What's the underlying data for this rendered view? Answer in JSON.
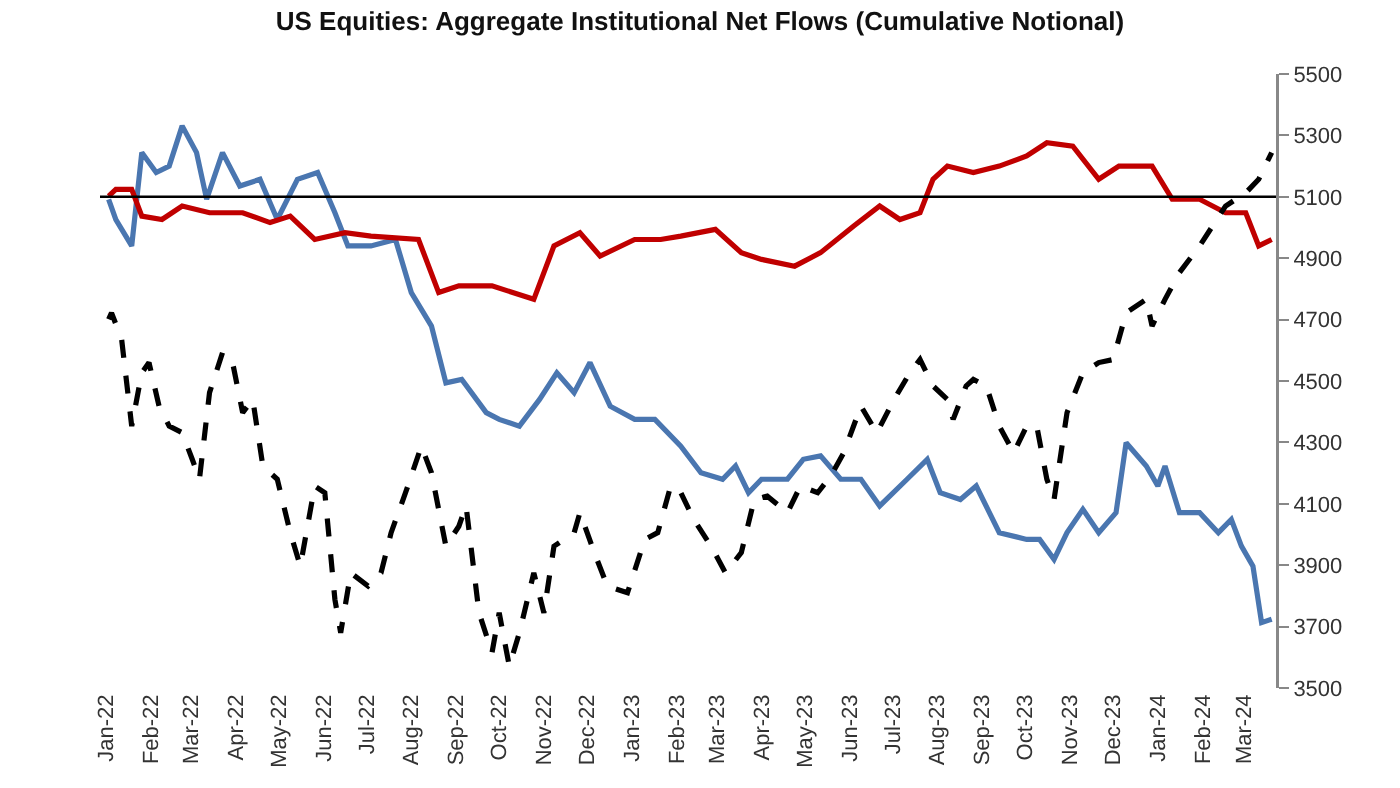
{
  "chart_data": {
    "type": "line",
    "title": "US Equities: Aggregate Institutional Net Flows (Cumulative Notional)",
    "xlim": [
      "2021-12-28",
      "2024-03-23"
    ],
    "xticks": [
      {
        "value": "2022-01-01",
        "label": "Jan-22"
      },
      {
        "value": "2022-02-01",
        "label": "Feb-22"
      },
      {
        "value": "2022-03-01",
        "label": "Mar-22"
      },
      {
        "value": "2022-04-01",
        "label": "Apr-22"
      },
      {
        "value": "2022-05-01",
        "label": "May-22"
      },
      {
        "value": "2022-06-01",
        "label": "Jun-22"
      },
      {
        "value": "2022-07-01",
        "label": "Jul-22"
      },
      {
        "value": "2022-08-01",
        "label": "Aug-22"
      },
      {
        "value": "2022-09-01",
        "label": "Sep-22"
      },
      {
        "value": "2022-10-01",
        "label": "Oct-22"
      },
      {
        "value": "2022-11-01",
        "label": "Nov-22"
      },
      {
        "value": "2022-12-01",
        "label": "Dec-22"
      },
      {
        "value": "2023-01-01",
        "label": "Jan-23"
      },
      {
        "value": "2023-02-01",
        "label": "Feb-23"
      },
      {
        "value": "2023-03-01",
        "label": "Mar-23"
      },
      {
        "value": "2023-04-01",
        "label": "Apr-23"
      },
      {
        "value": "2023-05-01",
        "label": "May-23"
      },
      {
        "value": "2023-06-01",
        "label": "Jun-23"
      },
      {
        "value": "2023-07-01",
        "label": "Jul-23"
      },
      {
        "value": "2023-08-01",
        "label": "Aug-23"
      },
      {
        "value": "2023-09-01",
        "label": "Sep-23"
      },
      {
        "value": "2023-10-01",
        "label": "Oct-23"
      },
      {
        "value": "2023-11-01",
        "label": "Nov-23"
      },
      {
        "value": "2023-12-01",
        "label": "Dec-23"
      },
      {
        "value": "2024-01-01",
        "label": "Jan-24"
      },
      {
        "value": "2024-02-01",
        "label": "Feb-24"
      },
      {
        "value": "2024-03-01",
        "label": "Mar-24"
      }
    ],
    "ylim": [
      3500,
      5500
    ],
    "yticks": [
      3500,
      3700,
      3900,
      4100,
      4300,
      4500,
      4700,
      4900,
      5100,
      5300,
      5500
    ],
    "grid": false,
    "ref_lines": [
      {
        "axis": "y",
        "value": 5100,
        "color": "#000000"
      }
    ],
    "series": [
      {
        "color": "#4a76b0",
        "line_style": "solid",
        "x": [
          "2022-01-03",
          "2022-01-08",
          "2022-01-19",
          "2022-01-26",
          "2022-02-05",
          "2022-02-14",
          "2022-02-23",
          "2022-03-05",
          "2022-03-12",
          "2022-03-23",
          "2022-04-04",
          "2022-04-18",
          "2022-04-30",
          "2022-05-14",
          "2022-05-28",
          "2022-06-09",
          "2022-06-18",
          "2022-07-04",
          "2022-07-21",
          "2022-08-01",
          "2022-08-15",
          "2022-08-25",
          "2022-09-05",
          "2022-09-22",
          "2022-10-01",
          "2022-10-15",
          "2022-10-29",
          "2022-11-10",
          "2022-11-22",
          "2022-12-03",
          "2022-12-17",
          "2023-01-03",
          "2023-01-17",
          "2023-02-04",
          "2023-02-18",
          "2023-03-05",
          "2023-03-14",
          "2023-03-23",
          "2023-04-01",
          "2023-04-19",
          "2023-04-30",
          "2023-05-12",
          "2023-05-26",
          "2023-06-09",
          "2023-06-22",
          "2023-07-11",
          "2023-07-25",
          "2023-08-03",
          "2023-08-17",
          "2023-08-28",
          "2023-09-13",
          "2023-10-02",
          "2023-10-11",
          "2023-10-21",
          "2023-10-30",
          "2023-11-10",
          "2023-11-21",
          "2023-12-03",
          "2023-12-10",
          "2023-12-24",
          "2024-01-01",
          "2024-01-06",
          "2024-01-16",
          "2024-01-30",
          "2024-02-12",
          "2024-02-21",
          "2024-02-28",
          "2024-03-07",
          "2024-03-13",
          "2024-03-20"
        ],
        "values": [
          5092,
          5026,
          4940,
          5244,
          5179,
          5200,
          5331,
          5244,
          5092,
          5244,
          5135,
          5157,
          5026,
          5157,
          5179,
          5048,
          4940,
          4940,
          4961,
          4788,
          4679,
          4494,
          4505,
          4397,
          4375,
          4353,
          4440,
          4527,
          4462,
          4560,
          4418,
          4375,
          4375,
          4288,
          4201,
          4180,
          4223,
          4136,
          4180,
          4180,
          4245,
          4256,
          4180,
          4180,
          4093,
          4180,
          4245,
          4136,
          4114,
          4158,
          4006,
          3984,
          3984,
          3919,
          4006,
          4082,
          4006,
          4071,
          4299,
          4223,
          4158,
          4223,
          4071,
          4071,
          4006,
          4049,
          3962,
          3897,
          3713,
          3724
        ]
      },
      {
        "color": "#c00000",
        "line_style": "solid",
        "x": [
          "2022-01-03",
          "2022-01-08",
          "2022-01-19",
          "2022-01-26",
          "2022-02-09",
          "2022-02-23",
          "2022-03-14",
          "2022-04-06",
          "2022-04-25",
          "2022-05-09",
          "2022-05-26",
          "2022-06-16",
          "2022-07-04",
          "2022-08-06",
          "2022-08-20",
          "2022-09-03",
          "2022-09-26",
          "2022-10-25",
          "2022-11-08",
          "2022-11-26",
          "2022-12-10",
          "2023-01-03",
          "2023-01-21",
          "2023-02-04",
          "2023-02-28",
          "2023-03-18",
          "2023-04-01",
          "2023-04-24",
          "2023-05-12",
          "2023-06-04",
          "2023-06-22",
          "2023-07-06",
          "2023-07-20",
          "2023-07-29",
          "2023-08-08",
          "2023-08-26",
          "2023-09-13",
          "2023-10-02",
          "2023-10-16",
          "2023-11-03",
          "2023-11-21",
          "2023-12-05",
          "2023-12-28",
          "2024-01-11",
          "2024-01-30",
          "2024-02-17",
          "2024-03-02",
          "2024-03-11",
          "2024-03-20"
        ],
        "values": [
          5102,
          5124,
          5124,
          5037,
          5026,
          5070,
          5048,
          5048,
          5016,
          5037,
          4961,
          4983,
          4972,
          4961,
          4788,
          4810,
          4810,
          4766,
          4940,
          4983,
          4907,
          4961,
          4961,
          4972,
          4994,
          4918,
          4896,
          4874,
          4918,
          5005,
          5070,
          5026,
          5048,
          5157,
          5200,
          5179,
          5200,
          5233,
          5276,
          5265,
          5157,
          5200,
          5200,
          5092,
          5092,
          5048,
          5048,
          4940,
          4961
        ]
      },
      {
        "color": "#000000",
        "line_style": "dashed",
        "x": [
          "2022-01-03",
          "2022-01-05",
          "2022-01-12",
          "2022-01-19",
          "2022-01-26",
          "2022-01-31",
          "2022-02-07",
          "2022-02-14",
          "2022-02-23",
          "2022-03-02",
          "2022-03-07",
          "2022-03-14",
          "2022-03-23",
          "2022-03-30",
          "2022-04-06",
          "2022-04-13",
          "2022-04-20",
          "2022-04-30",
          "2022-05-09",
          "2022-05-16",
          "2022-05-26",
          "2022-06-02",
          "2022-06-09",
          "2022-06-13",
          "2022-06-20",
          "2022-07-02",
          "2022-07-11",
          "2022-07-18",
          "2022-07-28",
          "2022-08-08",
          "2022-08-15",
          "2022-08-25",
          "2022-09-03",
          "2022-09-08",
          "2022-09-17",
          "2022-09-26",
          "2022-10-01",
          "2022-10-08",
          "2022-10-15",
          "2022-10-25",
          "2022-11-01",
          "2022-11-08",
          "2022-11-22",
          "2022-11-26",
          "2022-12-06",
          "2022-12-15",
          "2022-12-29",
          "2023-01-10",
          "2023-01-19",
          "2023-01-28",
          "2023-02-04",
          "2023-02-13",
          "2023-02-25",
          "2023-03-07",
          "2023-03-18",
          "2023-03-27",
          "2023-04-05",
          "2023-04-19",
          "2023-04-28",
          "2023-05-10",
          "2023-05-19",
          "2023-05-28",
          "2023-06-09",
          "2023-06-20",
          "2023-07-02",
          "2023-07-13",
          "2023-07-20",
          "2023-07-29",
          "2023-08-08",
          "2023-08-12",
          "2023-08-21",
          "2023-08-26",
          "2023-09-04",
          "2023-09-13",
          "2023-09-23",
          "2023-10-02",
          "2023-10-09",
          "2023-10-16",
          "2023-10-21",
          "2023-10-30",
          "2023-11-10",
          "2023-11-21",
          "2023-12-01",
          "2023-12-10",
          "2023-12-24",
          "2023-12-28",
          "2024-01-06",
          "2024-01-16",
          "2024-01-30",
          "2024-02-08",
          "2024-02-17",
          "2024-03-02",
          "2024-03-11",
          "2024-03-20"
        ],
        "values": [
          4701,
          4722,
          4636,
          4353,
          4527,
          4560,
          4418,
          4353,
          4332,
          4245,
          4180,
          4462,
          4592,
          4560,
          4397,
          4440,
          4223,
          4180,
          4006,
          3897,
          4158,
          4136,
          3788,
          3680,
          3875,
          3832,
          3875,
          4006,
          4136,
          4288,
          4201,
          3962,
          4027,
          4093,
          3745,
          3615,
          3745,
          3571,
          3680,
          3875,
          3745,
          3962,
          4006,
          4071,
          3941,
          3832,
          3810,
          3984,
          4006,
          4158,
          4136,
          4049,
          3962,
          3875,
          3941,
          4114,
          4125,
          4071,
          4158,
          4136,
          4190,
          4266,
          4418,
          4331,
          4440,
          4527,
          4570,
          4484,
          4440,
          4375,
          4484,
          4505,
          4484,
          4353,
          4266,
          4353,
          4353,
          4180,
          4114,
          4397,
          4527,
          4560,
          4570,
          4722,
          4766,
          4679,
          4766,
          4853,
          4940,
          5005,
          5070,
          5113,
          5157,
          5244
        ]
      }
    ]
  }
}
